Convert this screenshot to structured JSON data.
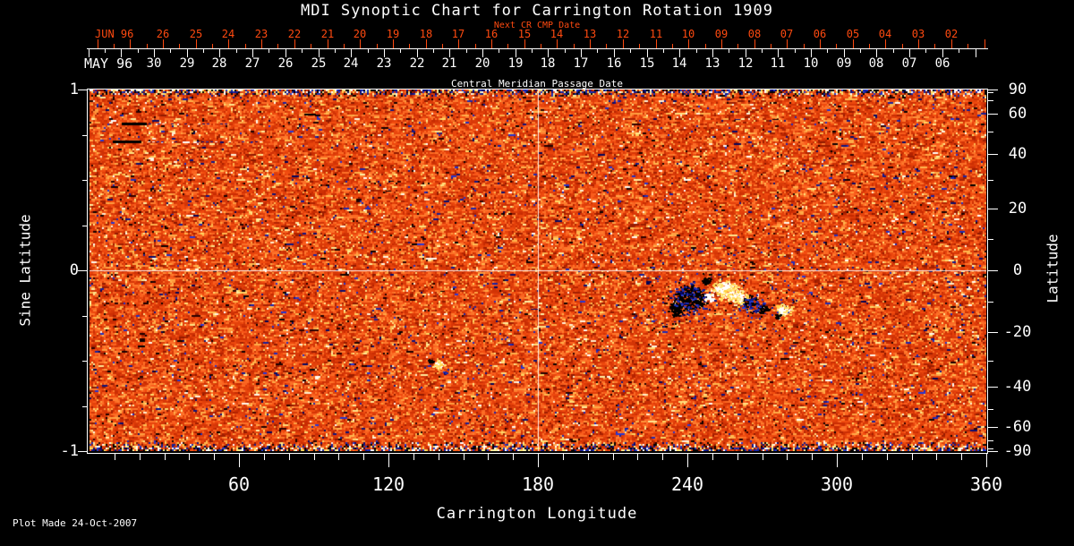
{
  "title": "MDI Synoptic Chart for Carrington Rotation 1909",
  "colors": {
    "background": "#000000",
    "foreground": "#ffffff",
    "date_axis_red": "#ff4a10",
    "map_base_orange": "#f04010",
    "negative_polarity": "#000000",
    "negative_fringe_blue": "#2030c0",
    "positive_polarity": "#ffffff",
    "positive_fringe_yellow": "#ffd050"
  },
  "top_axis": {
    "next_cr_label": "Next CR CMP Date",
    "next_month": "JUN 96",
    "next_days": [
      "26",
      "25",
      "24",
      "23",
      "22",
      "21",
      "20",
      "19",
      "18",
      "17",
      "16",
      "15",
      "14",
      "13",
      "12",
      "11",
      "10",
      "09",
      "08",
      "07",
      "06",
      "05",
      "04",
      "03",
      "02"
    ],
    "cmp_month": "MAY 96",
    "cmp_days": [
      "30",
      "29",
      "28",
      "27",
      "26",
      "25",
      "24",
      "23",
      "22",
      "21",
      "20",
      "19",
      "18",
      "17",
      "16",
      "15",
      "14",
      "13",
      "12",
      "11",
      "10",
      "09",
      "08",
      "07",
      "06"
    ],
    "cmp_axis_label": "Central Meridian Passage Date"
  },
  "left_axis": {
    "label": "Sine Latitude",
    "tick_labels": [
      "1",
      "0",
      "-1"
    ],
    "minor_step": 0.25
  },
  "right_axis": {
    "label": "Latitude",
    "tick_labels": [
      "90",
      "60",
      "40",
      "20",
      "0",
      "-20",
      "-40",
      "-60",
      "-90"
    ],
    "minor_step_deg": 10
  },
  "bottom_axis": {
    "label": "Carrington Longitude",
    "tick_labels": [
      "60",
      "120",
      "180",
      "240",
      "300",
      "360"
    ],
    "minor_step_deg": 10
  },
  "footer": {
    "plot_made": "Plot Made 24-Oct-2007"
  },
  "chart_data": {
    "type": "heatmap",
    "title": "MDI Synoptic Chart for Carrington Rotation 1909",
    "xlabel": "Carrington Longitude",
    "ylabel": "Sine Latitude",
    "ylabel_right": "Latitude",
    "xlim": [
      0,
      360
    ],
    "ylim": [
      -1,
      1
    ],
    "x_ticks": [
      60,
      120,
      180,
      240,
      300,
      360
    ],
    "y_ticks_sine": [
      1,
      0,
      -1
    ],
    "y_ticks_latitude": [
      90,
      60,
      40,
      20,
      0,
      -20,
      -40,
      -60,
      -90
    ],
    "date_axes": {
      "next_cr_cmp": {
        "month": "JUN 96",
        "days": [
          26,
          25,
          24,
          23,
          22,
          21,
          20,
          19,
          18,
          17,
          16,
          15,
          14,
          13,
          12,
          11,
          10,
          9,
          8,
          7,
          6,
          5,
          4,
          3,
          2
        ]
      },
      "central_meridian_passage": {
        "month": "MAY 96",
        "days": [
          30,
          29,
          28,
          27,
          26,
          25,
          24,
          23,
          22,
          21,
          20,
          19,
          18,
          17,
          16,
          15,
          14,
          13,
          12,
          11,
          10,
          9,
          8,
          7,
          6
        ]
      }
    },
    "colormap": "noisy red-orange magnetic flux map; black/dark-blue = negative polarity, white/yellow = positive polarity; high-variance mottled bands at both poles",
    "gridlines": {
      "vertical_at_longitude": 180,
      "horizontal_at_sine_latitude": 0
    },
    "features": [
      {
        "name": "active-region-complex",
        "longitude_range": [
          235,
          285
        ],
        "latitude_range": [
          -15,
          -3
        ],
        "description": "large bipolar active region: black negative flux with blue fringe on the left, white positive flux with yellow fringe on the right, plus a smaller bipole to its east"
      },
      {
        "name": "small-bipole",
        "longitude": 140,
        "latitude": -31,
        "description": "small white positive spot with dark companion"
      },
      {
        "name": "data-gap-streaks",
        "longitude_range": [
          10,
          55
        ],
        "latitudes": [
          54,
          45
        ],
        "description": "two short black horizontal data-gap streaks with dashed blue/white tails in the north-west quadrant"
      }
    ],
    "annotation": "Plot Made 24-Oct-2007"
  }
}
